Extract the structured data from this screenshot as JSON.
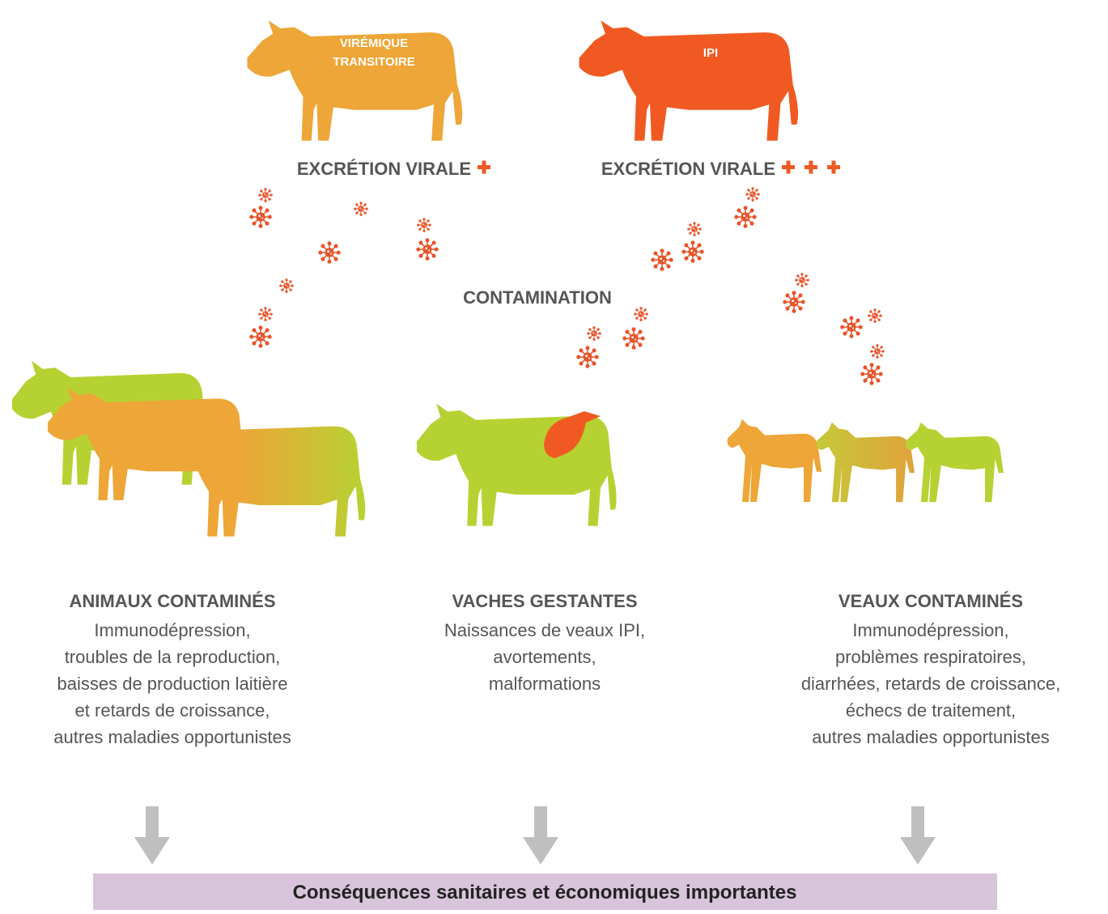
{
  "sources": [
    {
      "lines": [
        "VIRÉMIQUE",
        "TRANSITOIRE"
      ],
      "excretion": "EXCRÉTION VIRALE"
    },
    {
      "lines": [
        "IPI"
      ],
      "excretion": "EXCRÉTION VIRALE"
    }
  ],
  "contamination": "CONTAMINATION",
  "groups": [
    {
      "title": "ANIMAUX CONTAMINÉS",
      "lines": [
        "Immunodépression,",
        "troubles de la reproduction,",
        "baisses de production laitière",
        "et retards de croissance,",
        "autres maladies opportunistes"
      ]
    },
    {
      "title": "VACHES GESTANTES",
      "lines": [
        "Naissances de veaux IPI,",
        "avortements,",
        "malformations"
      ]
    },
    {
      "title": "VEAUX CONTAMINÉS",
      "lines": [
        "Immunodépression,",
        "problèmes respiratoires,",
        "diarrhées, retards de croissance,",
        "échecs de traitement,",
        "autres maladies opportunistes"
      ]
    }
  ],
  "conclusion": "Conséquences sanitaires et économiques importantes"
}
